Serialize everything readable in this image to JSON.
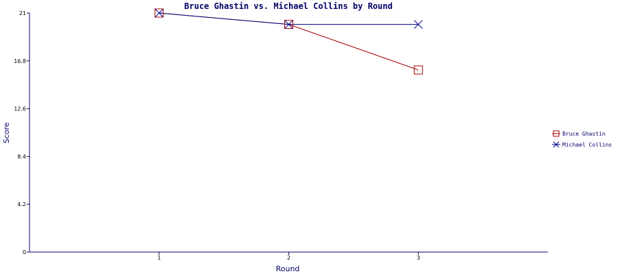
{
  "chart_data": {
    "type": "line",
    "title": "Bruce Ghastin vs. Michael Collins by Round",
    "xlabel": "Round",
    "ylabel": "Score",
    "x": [
      1,
      2,
      3
    ],
    "x_tick_labels": [
      "1",
      "2",
      "3"
    ],
    "xlim": [
      0,
      4
    ],
    "ylim": [
      0,
      21
    ],
    "y_ticks": [
      "0",
      "4.2",
      "8.4",
      "12.6",
      "16.8",
      "21"
    ],
    "grid": false,
    "legend_position": "right",
    "series": [
      {
        "name": "Bruce Ghastin",
        "values": [
          21,
          20,
          16
        ],
        "color": "#aa0000",
        "marker": "square"
      },
      {
        "name": "Michael Collins",
        "values": [
          21,
          20,
          20
        ],
        "color": "#000088",
        "marker": "x"
      }
    ]
  }
}
